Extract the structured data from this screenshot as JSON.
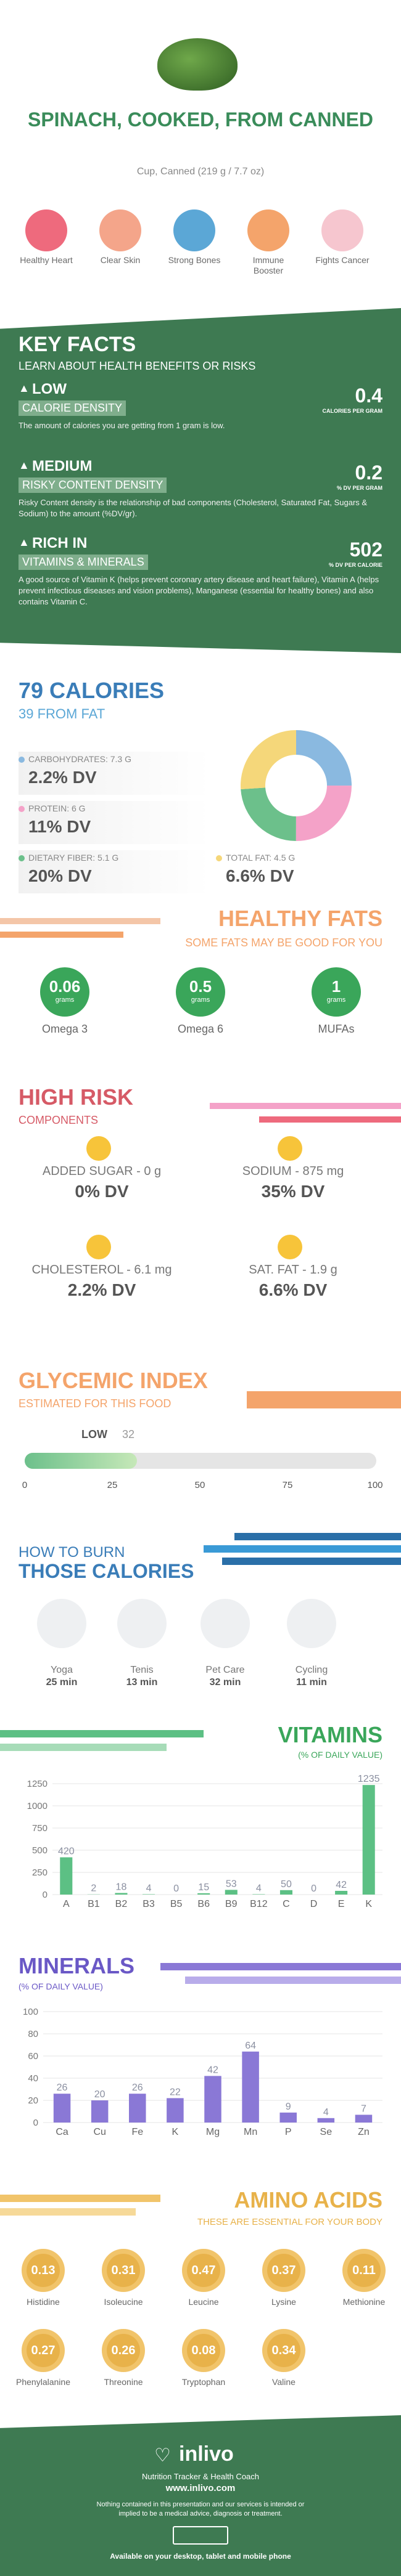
{
  "header": {
    "title": "SPINACH, COOKED, FROM CANNED",
    "serving": "Cup, Canned (219 g / 7.7 oz)"
  },
  "benefits": [
    {
      "label": "Healthy Heart",
      "color": "#ee6a7d",
      "icon": "heart-icon"
    },
    {
      "label": "Clear Skin",
      "color": "#f4a58a",
      "icon": "face-icon"
    },
    {
      "label": "Strong Bones",
      "color": "#5ba7d6",
      "icon": "bone-icon"
    },
    {
      "label": "Immune Booster",
      "color": "#f4a46b",
      "icon": "shield-icon"
    },
    {
      "label": "Fights Cancer",
      "color": "#f6c6cf",
      "icon": "ribbon-icon"
    }
  ],
  "key_facts": {
    "title": "KEY FACTS",
    "subtitle": "LEARN ABOUT HEALTH BENEFITS OR RISKS",
    "items": [
      {
        "level": "LOW",
        "label": "CALORIE DENSITY",
        "value": "0.4",
        "unit": "CALORIES PER GRAM",
        "desc": "The amount of calories you are getting from 1 gram is low."
      },
      {
        "level": "MEDIUM",
        "label": "RISKY CONTENT DENSITY",
        "value": "0.2",
        "unit": "% DV PER GRAM",
        "desc": "Risky Content density is the relationship of bad components (Cholesterol, Saturated Fat, Sugars & Sodium) to the amount (%DV/gr)."
      },
      {
        "level": "RICH IN",
        "label": "VITAMINS & MINERALS",
        "value": "502",
        "unit": "% DV PER CALORIE",
        "desc": "A good source of Vitamin K (helps prevent coronary artery disease and heart failure), Vitamin A (helps prevent infectious diseases and vision problems), Manganese (essential for healthy bones) and also contains Vitamin C."
      }
    ]
  },
  "calories": {
    "title": "79 CALORIES",
    "subtitle": "39 FROM FAT",
    "items": [
      {
        "label": "CARBOHYDRATES: 7.3 g",
        "value": "2.2% DV",
        "color": "#8ab9e0"
      },
      {
        "label": "PROTEIN: 6 g",
        "value": "11% DV",
        "color": "#f4a2c8"
      },
      {
        "label": "DIETARY FIBER: 5.1 g",
        "value": "20% DV",
        "color": "#6cc08b"
      },
      {
        "label": "TOTAL FAT: 4.5 g",
        "value": "6.6% DV",
        "color": "#f5d77a"
      }
    ]
  },
  "healthy_fats": {
    "title": "HEALTHY FATS",
    "subtitle": "SOME FATS MAY BE GOOD FOR YOU",
    "unit": "grams",
    "items": [
      {
        "value": "0.06",
        "label": "Omega 3"
      },
      {
        "value": "0.5",
        "label": "Omega 6"
      },
      {
        "value": "1",
        "label": "MUFAs"
      }
    ]
  },
  "high_risk": {
    "title": "HIGH RISK",
    "subtitle": "COMPONENTS",
    "items": [
      {
        "label": "ADDED SUGAR - 0 g",
        "value": "0% DV"
      },
      {
        "label": "SODIUM - 875 mg",
        "value": "35% DV"
      },
      {
        "label": "CHOLESTEROL - 6.1 mg",
        "value": "2.2% DV"
      },
      {
        "label": "SAT. FAT - 1.9 g",
        "value": "6.6% DV"
      }
    ]
  },
  "glycemic": {
    "title": "GLYCEMIC INDEX",
    "subtitle": "ESTIMATED FOR THIS FOOD",
    "level": "LOW",
    "value": "32",
    "ticks": [
      "0",
      "25",
      "50",
      "75",
      "100"
    ]
  },
  "burn": {
    "title1": "HOW TO BURN",
    "title2": "THOSE CALORIES",
    "items": [
      {
        "label": "Yoga",
        "time": "25 min"
      },
      {
        "label": "Tenis",
        "time": "13 min"
      },
      {
        "label": "Pet Care",
        "time": "32 min"
      },
      {
        "label": "Cycling",
        "time": "11 min"
      }
    ]
  },
  "chart_data": [
    {
      "type": "bar",
      "title": "VITAMINS",
      "subtitle": "(% OF DAILY VALUE)",
      "categories": [
        "A",
        "B1",
        "B2",
        "B3",
        "B5",
        "B6",
        "B9",
        "B12",
        "C",
        "D",
        "E",
        "K"
      ],
      "values": [
        420,
        2,
        18,
        4,
        0,
        15,
        53,
        4,
        50,
        0,
        42,
        1235
      ],
      "ylim": [
        0,
        1250
      ],
      "yticks": [
        "1250",
        "1000",
        "750",
        "500",
        "250",
        "0"
      ],
      "color": "#5cc084"
    },
    {
      "type": "bar",
      "title": "MINERALS",
      "subtitle": "(% OF DAILY VALUE)",
      "categories": [
        "Ca",
        "Cu",
        "Fe",
        "K",
        "Mg",
        "Mn",
        "P",
        "Se",
        "Zn"
      ],
      "values": [
        26,
        20,
        26,
        22,
        42,
        64,
        9,
        4,
        7
      ],
      "ylim": [
        0,
        100
      ],
      "yticks": [
        "100",
        "80",
        "60",
        "40",
        "20",
        "0"
      ],
      "color": "#8a78d6"
    }
  ],
  "amino": {
    "title": "AMINO ACIDS",
    "subtitle": "THESE ARE ESSENTIAL FOR YOUR BODY",
    "unit": "g",
    "items": [
      {
        "value": "0.13",
        "label": "Histidine"
      },
      {
        "value": "0.31",
        "label": "Isoleucine"
      },
      {
        "value": "0.47",
        "label": "Leucine"
      },
      {
        "value": "0.37",
        "label": "Lysine"
      },
      {
        "value": "0.11",
        "label": "Methionine"
      },
      {
        "value": "0.27",
        "label": "Phenylalanine"
      },
      {
        "value": "0.26",
        "label": "Threonine"
      },
      {
        "value": "0.08",
        "label": "Tryptophan"
      },
      {
        "value": "0.34",
        "label": "Valine"
      }
    ]
  },
  "footer": {
    "brand": "inlivo",
    "tag": "Nutrition Tracker & Health Coach",
    "url": "www.inlivo.com",
    "disclaimer": "Nothing contained in this presentation and our services is intended or implied to be a medical advice, diagnosis or treatment.",
    "available": "Available on your desktop, tablet and mobile phone"
  }
}
